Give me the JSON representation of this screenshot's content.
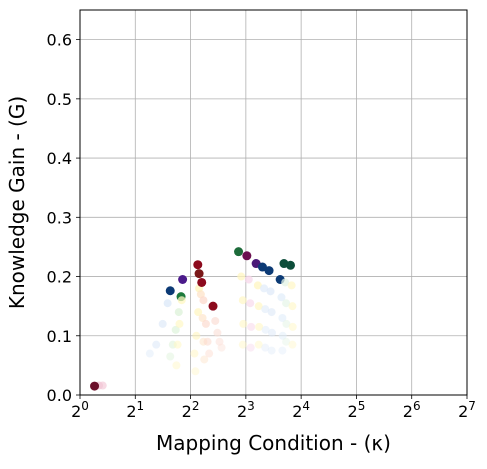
{
  "chart_data": {
    "type": "scatter",
    "title": "",
    "xlabel": "Mapping Condition - (κ)",
    "ylabel": "Knowledge Gain - (G)",
    "x_scale": "log2",
    "xlim": [
      1,
      128
    ],
    "ylim": [
      0,
      0.65
    ],
    "x_ticks": [
      {
        "value": 1,
        "base": "2",
        "exp": "0"
      },
      {
        "value": 2,
        "base": "2",
        "exp": "1"
      },
      {
        "value": 4,
        "base": "2",
        "exp": "2"
      },
      {
        "value": 8,
        "base": "2",
        "exp": "3"
      },
      {
        "value": 16,
        "base": "2",
        "exp": "4"
      },
      {
        "value": 32,
        "base": "2",
        "exp": "5"
      },
      {
        "value": 64,
        "base": "2",
        "exp": "6"
      },
      {
        "value": 128,
        "base": "2",
        "exp": "7"
      }
    ],
    "y_ticks": [
      {
        "value": 0.0,
        "label": "0.0"
      },
      {
        "value": 0.1,
        "label": "0.1"
      },
      {
        "value": 0.2,
        "label": "0.2"
      },
      {
        "value": 0.3,
        "label": "0.3"
      },
      {
        "value": 0.4,
        "label": "0.4"
      },
      {
        "value": 0.5,
        "label": "0.5"
      },
      {
        "value": 0.6,
        "label": "0.6"
      }
    ],
    "grid": true,
    "series": [
      {
        "color": "#6b0f2a",
        "fade": "#f2c6d6",
        "points": [
          [
            1.2,
            0.015
          ],
          [
            1.27,
            0.016
          ],
          [
            1.33,
            0.016
          ]
        ]
      },
      {
        "color": "#0c3a75",
        "fade": "#dbe8f8",
        "points": [
          [
            3.1,
            0.176
          ],
          [
            3.0,
            0.155
          ],
          [
            2.82,
            0.12
          ],
          [
            2.6,
            0.085
          ],
          [
            2.4,
            0.07
          ]
        ]
      },
      {
        "color": "#1d7a3c",
        "fade": "#dcf2d8",
        "points": [
          [
            3.55,
            0.166
          ],
          [
            3.45,
            0.14
          ],
          [
            3.32,
            0.11
          ],
          [
            3.2,
            0.085
          ],
          [
            3.1,
            0.065
          ]
        ]
      },
      {
        "color": "#4b1a8a",
        "fade": "#fff7c2",
        "points": [
          [
            3.62,
            0.195
          ],
          [
            3.58,
            0.16
          ],
          [
            3.48,
            0.12
          ],
          [
            3.4,
            0.085
          ],
          [
            3.35,
            0.05
          ]
        ]
      },
      {
        "color": "#8c0a1d",
        "fade": "#fff4b8",
        "points": [
          [
            4.38,
            0.22
          ],
          [
            4.45,
            0.18
          ],
          [
            4.4,
            0.14
          ],
          [
            4.3,
            0.1
          ],
          [
            4.2,
            0.07
          ],
          [
            4.25,
            0.04
          ]
        ]
      },
      {
        "color": "#7a1818",
        "fade": "#fde3c8",
        "points": [
          [
            4.45,
            0.205
          ],
          [
            4.55,
            0.17
          ],
          [
            4.65,
            0.13
          ],
          [
            4.7,
            0.09
          ],
          [
            4.75,
            0.06
          ]
        ]
      },
      {
        "color": "#8c0a1d",
        "fade": "#fcd9cc",
        "points": [
          [
            4.6,
            0.19
          ],
          [
            4.7,
            0.16
          ],
          [
            4.85,
            0.12
          ],
          [
            4.95,
            0.09
          ],
          [
            5.05,
            0.07
          ]
        ]
      },
      {
        "color": "#8c0a1d",
        "fade": "#fbe0d8",
        "points": [
          [
            5.3,
            0.15
          ],
          [
            5.45,
            0.125
          ],
          [
            5.6,
            0.105
          ],
          [
            5.75,
            0.09
          ],
          [
            5.9,
            0.08
          ]
        ]
      },
      {
        "color": "#1d6b3a",
        "fade": "#fff6c0",
        "points": [
          [
            7.3,
            0.242
          ],
          [
            7.55,
            0.2
          ],
          [
            7.7,
            0.16
          ],
          [
            7.75,
            0.12
          ],
          [
            7.7,
            0.085
          ]
        ]
      },
      {
        "color": "#6b1050",
        "fade": "#f7d7ea",
        "points": [
          [
            8.1,
            0.235
          ],
          [
            8.3,
            0.195
          ],
          [
            8.45,
            0.155
          ],
          [
            8.55,
            0.115
          ],
          [
            8.5,
            0.08
          ]
        ]
      },
      {
        "color": "#4a1a78",
        "fade": "#fff6c0",
        "points": [
          [
            9.1,
            0.222
          ],
          [
            9.3,
            0.185
          ],
          [
            9.4,
            0.15
          ],
          [
            9.45,
            0.115
          ],
          [
            9.4,
            0.085
          ]
        ]
      },
      {
        "color": "#0c3a75",
        "fade": "#e2ecf9",
        "points": [
          [
            9.85,
            0.216
          ],
          [
            10.05,
            0.18
          ],
          [
            10.2,
            0.145
          ],
          [
            10.25,
            0.11
          ],
          [
            10.2,
            0.08
          ]
        ]
      },
      {
        "color": "#0c3a75",
        "fade": "#dfeaf8",
        "points": [
          [
            10.7,
            0.21
          ],
          [
            10.9,
            0.175
          ],
          [
            11.05,
            0.14
          ],
          [
            11.1,
            0.105
          ],
          [
            11.05,
            0.075
          ]
        ]
      },
      {
        "color": "#0c3a75",
        "fade": "#e2eefa",
        "points": [
          [
            12.3,
            0.195
          ],
          [
            12.5,
            0.165
          ],
          [
            12.65,
            0.13
          ],
          [
            12.7,
            0.1
          ],
          [
            12.65,
            0.075
          ]
        ]
      },
      {
        "color": "#0d4d3a",
        "fade": "#e4f4e6",
        "points": [
          [
            12.9,
            0.222
          ],
          [
            13.1,
            0.19
          ],
          [
            13.25,
            0.155
          ],
          [
            13.3,
            0.12
          ],
          [
            13.25,
            0.09
          ]
        ]
      },
      {
        "color": "#0d4d3a",
        "fade": "#fff7c8",
        "points": [
          [
            14.0,
            0.219
          ],
          [
            14.2,
            0.185
          ],
          [
            14.35,
            0.15
          ],
          [
            14.4,
            0.115
          ],
          [
            14.35,
            0.085
          ]
        ]
      }
    ]
  }
}
